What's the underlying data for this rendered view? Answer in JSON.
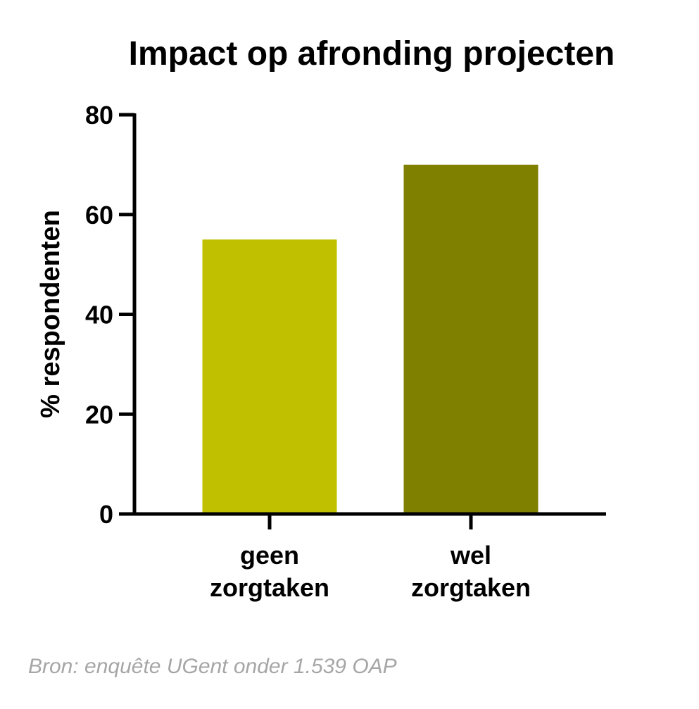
{
  "chart_data": {
    "type": "bar",
    "title": "Impact op afronding projecten",
    "categories": [
      [
        "geen",
        "zorgtaken"
      ],
      [
        "wel",
        "zorgtaken"
      ]
    ],
    "values": [
      55,
      70
    ],
    "bar_colors": [
      "#c0c000",
      "#808000"
    ],
    "xlabel": "",
    "ylabel": "% respondenten",
    "ylim": [
      0,
      80
    ],
    "yticks": [
      0,
      20,
      40,
      60,
      80
    ],
    "ytick_labels": [
      "0",
      "20",
      "40",
      "60",
      "80"
    ],
    "grid": false,
    "legend": "none"
  },
  "source": "Bron: enquête UGent onder 1.539 OAP"
}
